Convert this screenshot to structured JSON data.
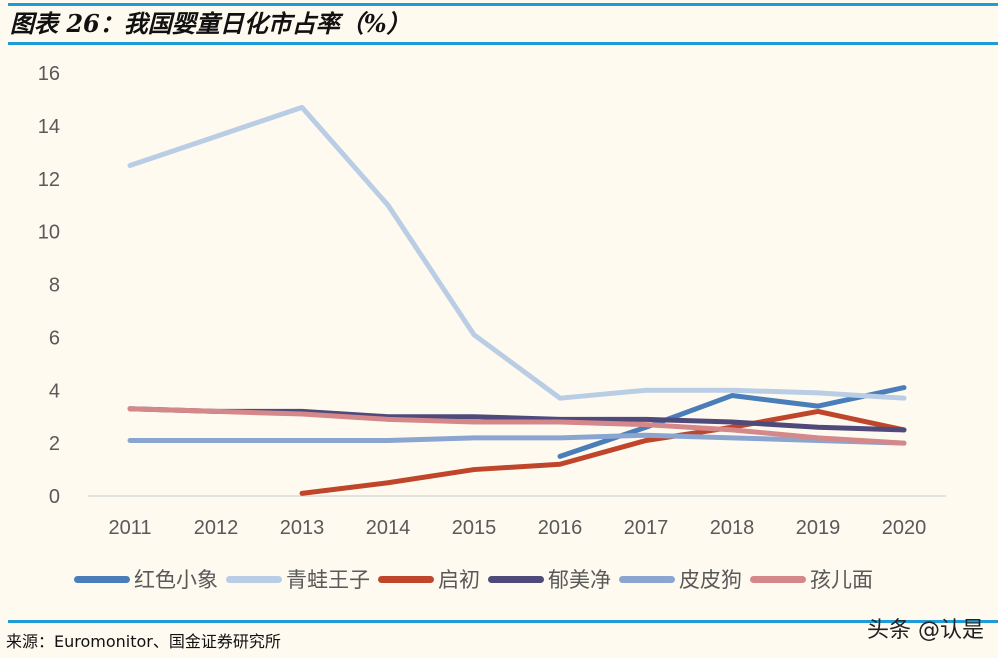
{
  "header": {
    "title": "图表 26：我国婴童日化市占率（%）"
  },
  "footer": {
    "source": "来源：Euromonitor、国金证券研究所",
    "watermark": "头条 @认是"
  },
  "chart_data": {
    "type": "line",
    "title": "图表 26：我国婴童日化市占率（%）",
    "xlabel": "",
    "ylabel": "",
    "x": [
      "2011",
      "2012",
      "2013",
      "2014",
      "2015",
      "2016",
      "2017",
      "2018",
      "2019",
      "2020"
    ],
    "ylim": [
      0,
      16
    ],
    "yticks": [
      0,
      2,
      4,
      6,
      8,
      10,
      12,
      14,
      16
    ],
    "grid": false,
    "legend": "bottom",
    "series": [
      {
        "name": "红色小象",
        "color": "#4a7ebb",
        "values": [
          null,
          null,
          null,
          null,
          null,
          1.5,
          2.6,
          3.8,
          3.4,
          4.1
        ]
      },
      {
        "name": "青蛙王子",
        "color": "#b9cde5",
        "values": [
          12.5,
          13.6,
          14.7,
          11.0,
          6.1,
          3.7,
          4.0,
          4.0,
          3.9,
          3.7
        ]
      },
      {
        "name": "启初",
        "color": "#c0462b",
        "values": [
          null,
          null,
          0.1,
          0.5,
          1.0,
          1.2,
          2.1,
          2.6,
          3.2,
          2.5
        ]
      },
      {
        "name": "郁美净",
        "color": "#4f4a7a",
        "values": [
          3.3,
          3.2,
          3.2,
          3.0,
          3.0,
          2.9,
          2.9,
          2.8,
          2.6,
          2.5
        ]
      },
      {
        "name": "皮皮狗",
        "color": "#8aa5d0",
        "values": [
          2.1,
          2.1,
          2.1,
          2.1,
          2.2,
          2.2,
          2.3,
          2.2,
          2.1,
          2.0
        ]
      },
      {
        "name": "孩儿面",
        "color": "#d4888a",
        "values": [
          3.3,
          3.2,
          3.1,
          2.9,
          2.8,
          2.8,
          2.7,
          2.5,
          2.2,
          2.0
        ]
      }
    ]
  }
}
